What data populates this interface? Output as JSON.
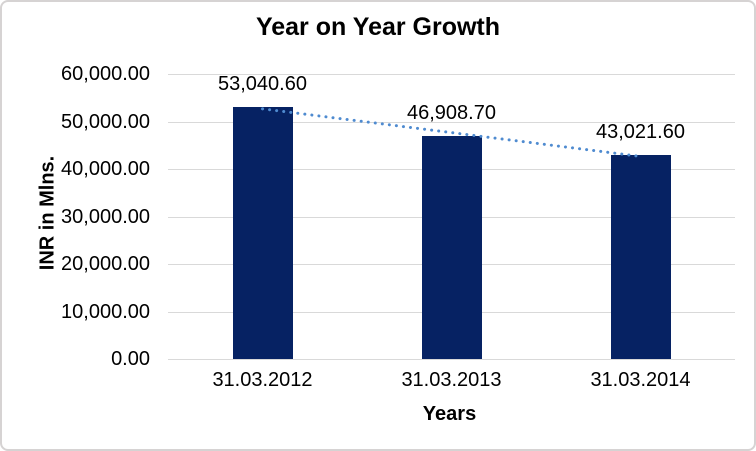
{
  "chart_data": {
    "type": "bar",
    "title": "Year on Year Growth",
    "xlabel": "Years",
    "ylabel": "INR in Mlns.",
    "categories": [
      "31.03.2012",
      "31.03.2013",
      "31.03.2014"
    ],
    "values": [
      53040.6,
      46908.7,
      43021.6
    ],
    "data_labels": [
      "53,040.60",
      "46,908.70",
      "43,021.60"
    ],
    "ylim": [
      0,
      60000
    ],
    "ytick_step": 10000,
    "ytick_labels": [
      "0.00",
      "10,000.00",
      "20,000.00",
      "30,000.00",
      "40,000.00",
      "50,000.00",
      "60,000.00"
    ],
    "grid": true,
    "legend": "none",
    "trendline": {
      "type": "linear",
      "style": "dotted"
    },
    "colors": {
      "bar": "#062263",
      "trendline": "#4f8bd0",
      "gridline": "#d9d9d9",
      "axis_line": "#d9d9d9",
      "text": "#000000",
      "frame_border": "#d6d3d3",
      "background": "#ffffff"
    }
  }
}
